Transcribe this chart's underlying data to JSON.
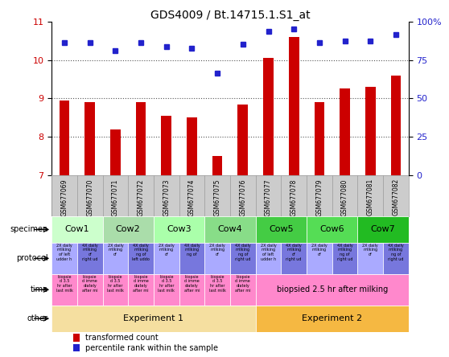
{
  "title": "GDS4009 / Bt.14715.1.S1_at",
  "samples": [
    "GSM677069",
    "GSM677070",
    "GSM677071",
    "GSM677072",
    "GSM677073",
    "GSM677074",
    "GSM677075",
    "GSM677076",
    "GSM677077",
    "GSM677078",
    "GSM677079",
    "GSM677080",
    "GSM677081",
    "GSM677082"
  ],
  "bar_values": [
    8.95,
    8.9,
    8.2,
    8.9,
    8.55,
    8.5,
    7.5,
    8.85,
    10.05,
    10.6,
    8.9,
    9.25,
    9.3,
    9.6
  ],
  "dot_values": [
    10.45,
    10.45,
    10.25,
    10.45,
    10.35,
    10.3,
    9.65,
    10.4,
    10.75,
    10.8,
    10.45,
    10.5,
    10.5,
    10.65
  ],
  "ylim_left": [
    7,
    11
  ],
  "ylim_right": [
    0,
    100
  ],
  "yticks_left": [
    7,
    8,
    9,
    10,
    11
  ],
  "yticks_right": [
    0,
    25,
    50,
    75,
    100
  ],
  "bar_color": "#cc0000",
  "dot_color": "#2222cc",
  "bar_baseline": 7,
  "specimen_labels": [
    "Cow1",
    "Cow2",
    "Cow3",
    "Cow4",
    "Cow5",
    "Cow6",
    "Cow7"
  ],
  "specimen_spans": [
    [
      0,
      2
    ],
    [
      2,
      4
    ],
    [
      4,
      6
    ],
    [
      6,
      8
    ],
    [
      8,
      10
    ],
    [
      10,
      12
    ],
    [
      12,
      14
    ]
  ],
  "specimen_colors": [
    "#ccffcc",
    "#aaddaa",
    "#aaffaa",
    "#88dd88",
    "#44cc44",
    "#55dd55",
    "#22bb22"
  ],
  "protocol_color_2x": "#aaaaff",
  "protocol_color_4x": "#7777dd",
  "time_color": "#ff88cc",
  "other_exp1_color": "#f5dfa0",
  "other_exp2_color": "#f5b842",
  "legend_bar_label": "transformed count",
  "legend_dot_label": "percentile rank within the sample",
  "grid_color": "#555555",
  "tick_color_left": "#cc0000",
  "tick_color_right": "#2222cc",
  "xticklabel_bg": "#cccccc",
  "label_fontsize": 7,
  "bar_width": 0.4
}
